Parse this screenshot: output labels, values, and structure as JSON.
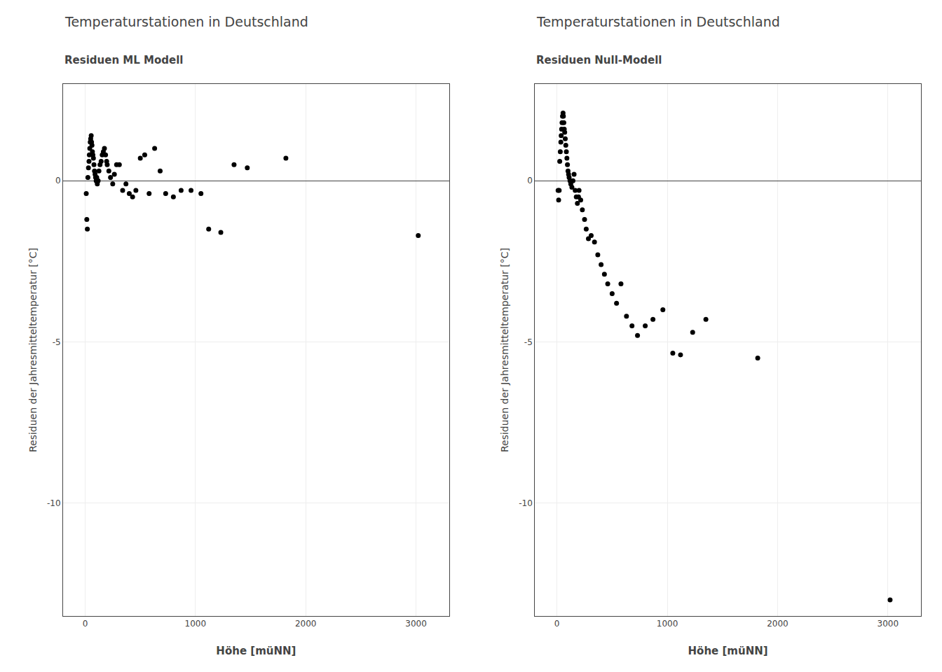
{
  "chart_data": [
    {
      "type": "scatter",
      "title": "Temperaturstationen in Deutschland",
      "subtitle": "Residuen ML Modell",
      "x_label": "Höhe [müNN]",
      "y_label": "Residuen der Jahresmitteltemperatur [°C]",
      "x": [
        10,
        15,
        20,
        25,
        30,
        35,
        38,
        42,
        46,
        50,
        55,
        58,
        62,
        66,
        70,
        75,
        80,
        85,
        90,
        95,
        100,
        105,
        110,
        118,
        125,
        135,
        145,
        155,
        165,
        175,
        185,
        195,
        200,
        215,
        230,
        250,
        265,
        285,
        310,
        340,
        370,
        400,
        430,
        460,
        500,
        540,
        580,
        630,
        680,
        730,
        800,
        870,
        960,
        1050,
        1120,
        1230,
        1350,
        1470,
        1820,
        3020
      ],
      "values": [
        -0.4,
        -1.2,
        -1.5,
        0.1,
        0.4,
        0.6,
        0.8,
        1.0,
        1.2,
        1.3,
        1.4,
        1.2,
        1.1,
        0.9,
        0.8,
        0.7,
        0.5,
        0.3,
        0.2,
        0.1,
        0.0,
        0.1,
        -0.1,
        0.0,
        0.3,
        0.5,
        0.6,
        0.8,
        0.9,
        1.0,
        0.8,
        0.6,
        0.5,
        0.3,
        0.1,
        -0.1,
        0.2,
        0.5,
        0.5,
        -0.3,
        -0.1,
        -0.4,
        -0.5,
        -0.3,
        0.7,
        0.8,
        -0.4,
        1.0,
        0.3,
        -0.4,
        -0.5,
        -0.3,
        -0.3,
        -0.4,
        -1.5,
        -1.6,
        0.5,
        0.4,
        0.7,
        -1.7
      ],
      "color": "#000000",
      "xlim": [
        -200,
        3300
      ],
      "ylim": [
        -13.5,
        3.0
      ],
      "xticks": [
        0,
        1000,
        2000,
        3000
      ],
      "yticks": [
        0,
        -5,
        -10
      ],
      "grid": true
    },
    {
      "type": "scatter",
      "title": "Temperaturstationen in Deutschland",
      "subtitle": "Residuen Null-Modell",
      "x_label": "Höhe [müNN]",
      "y_label": "Residuen der Jahresmitteltemperatur [°C]",
      "x": [
        10,
        15,
        20,
        25,
        30,
        35,
        38,
        42,
        46,
        50,
        55,
        58,
        62,
        66,
        70,
        75,
        80,
        85,
        90,
        95,
        100,
        105,
        110,
        118,
        125,
        135,
        145,
        155,
        165,
        175,
        185,
        195,
        200,
        215,
        230,
        250,
        265,
        285,
        310,
        340,
        370,
        400,
        430,
        460,
        500,
        540,
        580,
        630,
        680,
        730,
        800,
        870,
        960,
        1050,
        1120,
        1230,
        1350,
        1820,
        3020
      ],
      "values": [
        -0.3,
        -0.6,
        -0.3,
        0.6,
        0.9,
        1.2,
        1.4,
        1.6,
        1.8,
        2.0,
        2.1,
        2.0,
        1.8,
        1.6,
        1.5,
        1.3,
        1.1,
        0.9,
        0.7,
        0.5,
        0.3,
        0.2,
        0.1,
        0.0,
        -0.1,
        -0.2,
        0.0,
        0.2,
        -0.3,
        -0.5,
        -0.7,
        -0.5,
        -0.3,
        -0.6,
        -0.9,
        -1.2,
        -1.5,
        -1.8,
        -1.7,
        -1.9,
        -2.3,
        -2.6,
        -2.9,
        -3.2,
        -3.5,
        -3.8,
        -3.2,
        -4.2,
        -4.5,
        -4.8,
        -4.5,
        -4.3,
        -4.0,
        -5.35,
        -5.4,
        -4.7,
        -4.3,
        -5.5,
        -13.0
      ],
      "color": "#000000",
      "xlim": [
        -200,
        3300
      ],
      "ylim": [
        -13.5,
        3.0
      ],
      "xticks": [
        0,
        1000,
        2000,
        3000
      ],
      "yticks": [
        0,
        -5,
        -10
      ],
      "grid": true
    }
  ]
}
